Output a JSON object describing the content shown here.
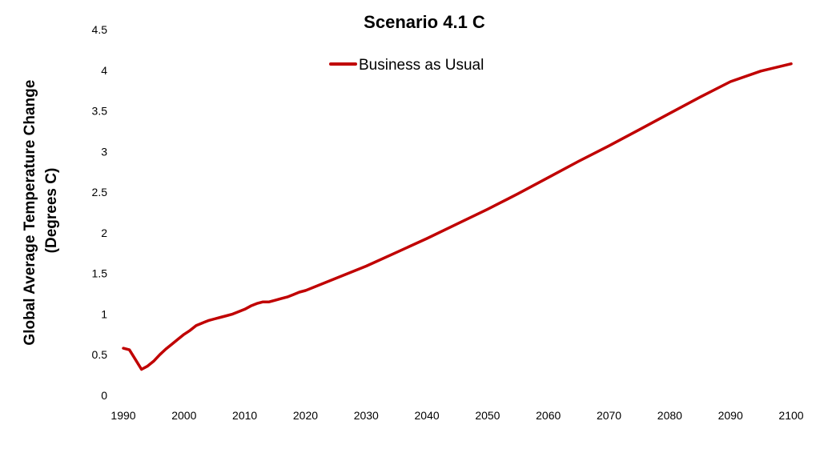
{
  "chart_data": {
    "type": "line",
    "title": "Scenario 4.1 C",
    "ylabel_lines": [
      "Global Average Temperature Change",
      "(Degrees C)"
    ],
    "xlabel": "",
    "xlim": [
      1990,
      2100
    ],
    "ylim": [
      0,
      4.5
    ],
    "x_ticks": [
      "1990",
      "2000",
      "2010",
      "2020",
      "2030",
      "2040",
      "2050",
      "2060",
      "2070",
      "2080",
      "2090",
      "2100"
    ],
    "y_ticks": [
      "0",
      "0.5",
      "1",
      "1.5",
      "2",
      "2.5",
      "3",
      "3.5",
      "4",
      "4.5"
    ],
    "grid": false,
    "legend_position": "top-center",
    "series": [
      {
        "name": "Business as Usual",
        "color": "#c00000",
        "x": [
          1990,
          1991,
          1992,
          1993,
          1994,
          1995,
          1996,
          1997,
          1998,
          1999,
          2000,
          2001,
          2002,
          2003,
          2004,
          2005,
          2006,
          2007,
          2008,
          2009,
          2010,
          2011,
          2012,
          2013,
          2014,
          2015,
          2016,
          2017,
          2018,
          2019,
          2020,
          2025,
          2030,
          2035,
          2040,
          2045,
          2050,
          2055,
          2060,
          2065,
          2070,
          2075,
          2080,
          2085,
          2090,
          2095,
          2100
        ],
        "values": [
          0.58,
          0.56,
          0.44,
          0.32,
          0.36,
          0.42,
          0.5,
          0.57,
          0.63,
          0.69,
          0.75,
          0.8,
          0.86,
          0.89,
          0.92,
          0.94,
          0.96,
          0.98,
          1.0,
          1.03,
          1.06,
          1.1,
          1.13,
          1.15,
          1.15,
          1.17,
          1.19,
          1.21,
          1.24,
          1.27,
          1.29,
          1.44,
          1.59,
          1.76,
          1.93,
          2.11,
          2.29,
          2.48,
          2.68,
          2.88,
          3.07,
          3.27,
          3.47,
          3.67,
          3.86,
          3.99,
          4.08
        ]
      }
    ]
  }
}
